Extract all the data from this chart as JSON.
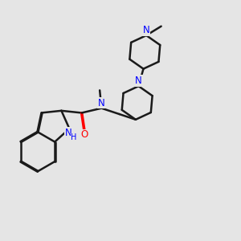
{
  "bg": "#e5e5e5",
  "bc": "#1a1a1a",
  "nc": "#0000ff",
  "oc": "#ff0000",
  "lw": 1.8,
  "dbo": 0.018,
  "figsize": [
    3.0,
    3.0
  ],
  "dpi": 100,
  "xlim": [
    0.0,
    10.0
  ],
  "ylim": [
    0.5,
    10.5
  ]
}
